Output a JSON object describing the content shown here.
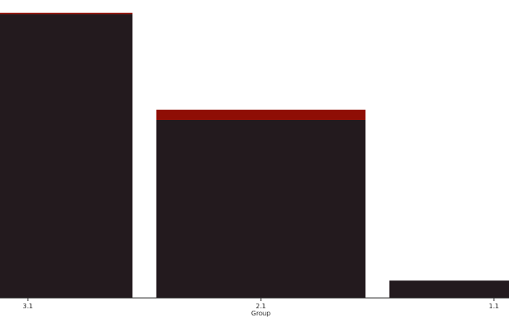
{
  "chart_data": {
    "type": "bar",
    "stacked": true,
    "categories": [
      "3.1",
      "2.1",
      "1.1"
    ],
    "series": [
      {
        "values": [
          0.995,
          0.624,
          0.061
        ],
        "color": "#231a1e"
      },
      {
        "values": [
          0.005,
          0.036,
          0.0
        ],
        "color": "#8f0e05"
      }
    ],
    "xlabel": "Group",
    "ylabel": "",
    "ylim": [
      0,
      1
    ],
    "grid": false,
    "legend": "none"
  }
}
